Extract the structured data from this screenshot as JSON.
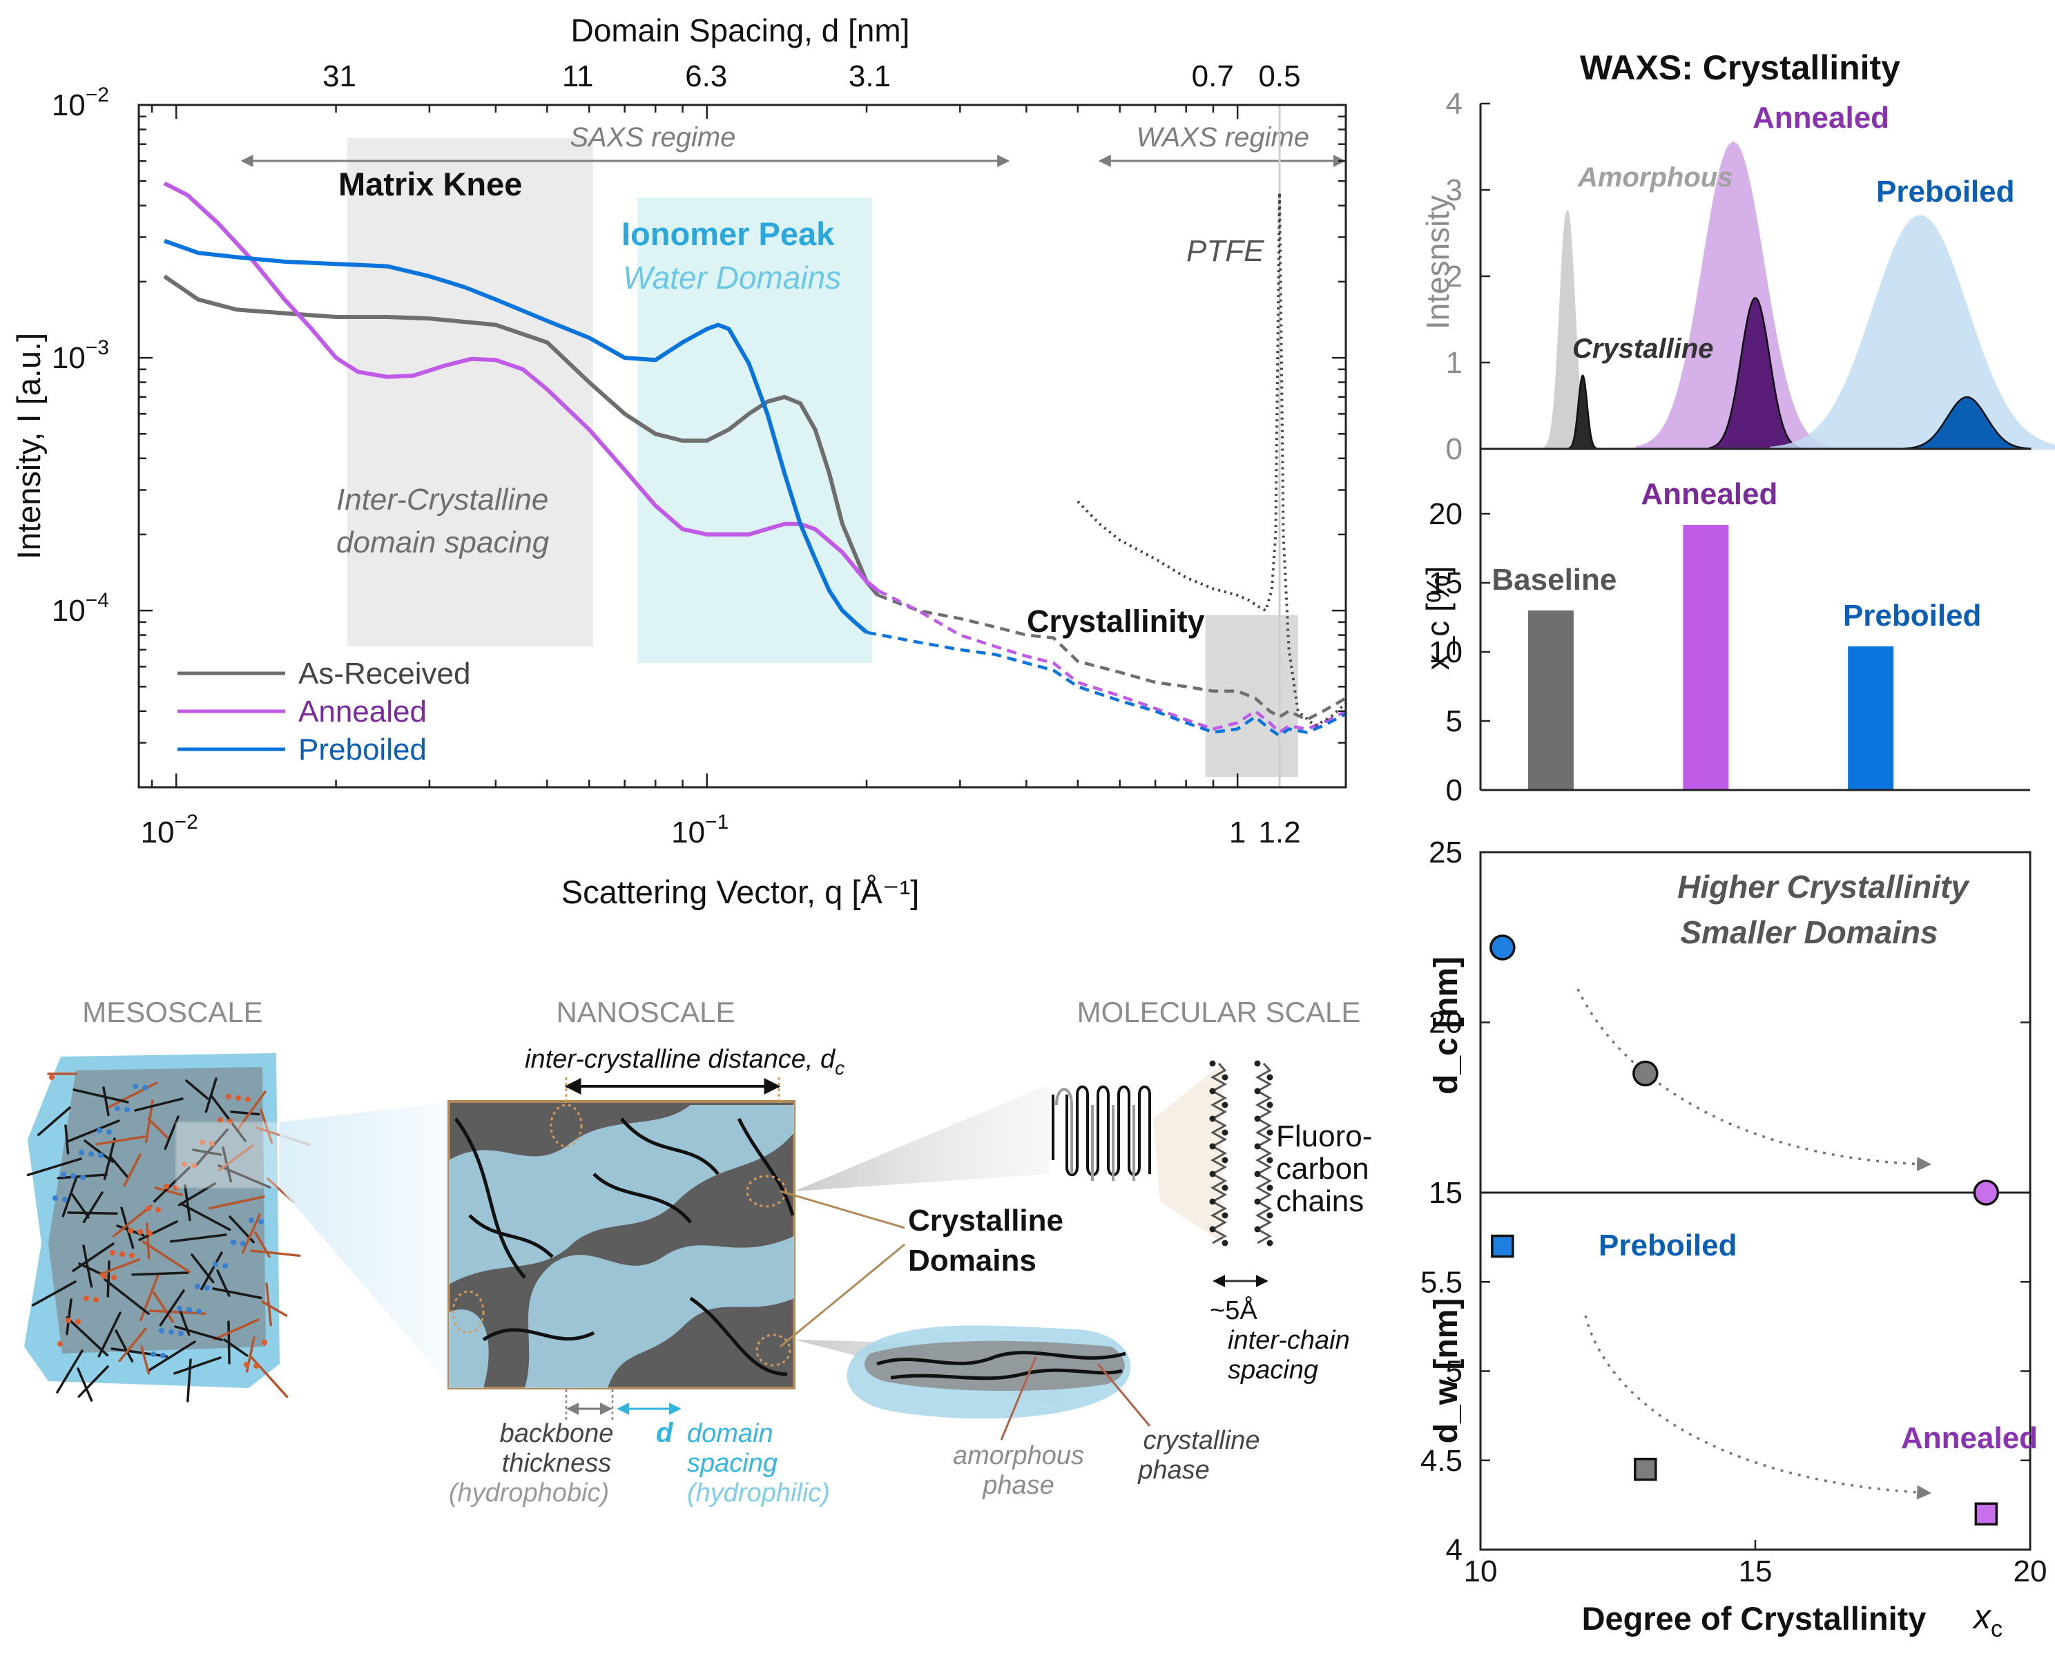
{
  "chart_data": [
    {
      "id": "saxs",
      "type": "line",
      "xscale": "log",
      "yscale": "log",
      "xlabel": "Scattering Vector, q [Å⁻¹]",
      "ylabel": "Intensity, I [a.u.]",
      "top_axis_label": "Domain Spacing, d [nm]",
      "xlim": [
        0.0085,
        1.6
      ],
      "ylim": [
        2e-05,
        0.01
      ],
      "x_ticks": [
        {
          "v": 0.01,
          "label": "10",
          "exp": "−2"
        },
        {
          "v": 0.1,
          "label": "10",
          "exp": "−1"
        },
        {
          "v": 1,
          "label": "1",
          "exp": ""
        },
        {
          "v": 1.2,
          "label": "1.2",
          "exp": ""
        }
      ],
      "y_ticks": [
        {
          "v": 0.01,
          "label": "10",
          "exp": "−2"
        },
        {
          "v": 0.001,
          "label": "10",
          "exp": "−3"
        },
        {
          "v": 0.0001,
          "label": "10",
          "exp": "−4"
        }
      ],
      "top_ticks": [
        {
          "q": 0.0203,
          "label": "31"
        },
        {
          "q": 0.0571,
          "label": "11"
        },
        {
          "q": 0.0997,
          "label": "6.3"
        },
        {
          "q": 0.2027,
          "label": "3.1"
        },
        {
          "q": 0.898,
          "label": "0.7"
        },
        {
          "q": 1.2,
          "label": "0.5"
        }
      ],
      "regimes": [
        {
          "label": "SAXS regime",
          "x0": 0.0133,
          "x1": 0.37
        },
        {
          "label": "WAXS regime",
          "x0": 0.55,
          "x1": 1.6
        }
      ],
      "shaded_regions": [
        {
          "name": "matrix-knee",
          "x0": 0.021,
          "x1": 0.061,
          "y0": 7.2e-05,
          "y1": 0.0074,
          "color": "#ebebeb"
        },
        {
          "name": "ionomer",
          "x0": 0.074,
          "x1": 0.205,
          "y0": 6.2e-05,
          "y1": 0.0043,
          "color": "#def4f4"
        },
        {
          "name": "crystallinity",
          "x0": 0.87,
          "x1": 1.3,
          "y0": 2.2e-05,
          "y1": 9.6e-05,
          "color": "#d9d9d9"
        }
      ],
      "annotations": {
        "matrix_knee": "Matrix Knee",
        "ionomer_peak": "Ionomer Peak",
        "water_domains": "Water Domains",
        "inter_crystalline_1": "Inter-Crystalline",
        "inter_crystalline_2": "domain spacing",
        "ptfe": "PTFE",
        "crystallinity": "Crystallinity"
      },
      "series": [
        {
          "name": "As-Received",
          "color": "#6e6e6e",
          "solid_x": [
            0.0095,
            0.011,
            0.013,
            0.016,
            0.02,
            0.025,
            0.03,
            0.04,
            0.05,
            0.06,
            0.07,
            0.08,
            0.09,
            0.1,
            0.11,
            0.12,
            0.13,
            0.14,
            0.15,
            0.16,
            0.17,
            0.18,
            0.2,
            0.21
          ],
          "solid_y": [
            0.0021,
            0.0017,
            0.00155,
            0.0015,
            0.00145,
            0.00145,
            0.00143,
            0.00135,
            0.00115,
            0.0008,
            0.0006,
            0.0005,
            0.00047,
            0.00047,
            0.00052,
            0.0006,
            0.00067,
            0.0007,
            0.00066,
            0.00052,
            0.00035,
            0.00022,
            0.00013,
            0.000115
          ],
          "dash_x": [
            0.21,
            0.25,
            0.3,
            0.35,
            0.4,
            0.45,
            0.5,
            0.6,
            0.7,
            0.8,
            0.9,
            1.0,
            1.08,
            1.15,
            1.2,
            1.25,
            1.35,
            1.45,
            1.6
          ],
          "dash_y": [
            0.000115,
            0.0001,
            9.3e-05,
            8.6e-05,
            8e-05,
            7.8e-05,
            6.3e-05,
            5.7e-05,
            5.2e-05,
            5e-05,
            4.8e-05,
            4.8e-05,
            4.5e-05,
            4e-05,
            3.8e-05,
            4e-05,
            3.7e-05,
            4e-05,
            4.5e-05
          ]
        },
        {
          "name": "Annealed",
          "color": "#c05be8",
          "solid_x": [
            0.0095,
            0.0105,
            0.012,
            0.014,
            0.016,
            0.018,
            0.02,
            0.022,
            0.025,
            0.028,
            0.032,
            0.036,
            0.04,
            0.045,
            0.05,
            0.06,
            0.07,
            0.08,
            0.09,
            0.1,
            0.12,
            0.14,
            0.15,
            0.16,
            0.18,
            0.2,
            0.21
          ],
          "solid_y": [
            0.0049,
            0.0044,
            0.0034,
            0.0024,
            0.0017,
            0.0013,
            0.001,
            0.00088,
            0.00084,
            0.00085,
            0.00093,
            0.00099,
            0.00098,
            0.0009,
            0.00075,
            0.00052,
            0.00036,
            0.00026,
            0.00021,
            0.0002,
            0.0002,
            0.00022,
            0.00022,
            0.00021,
            0.00017,
            0.00013,
            0.00012
          ],
          "dash_x": [
            0.21,
            0.25,
            0.3,
            0.35,
            0.4,
            0.45,
            0.5,
            0.6,
            0.7,
            0.8,
            0.9,
            1.0,
            1.08,
            1.15,
            1.2,
            1.25,
            1.35,
            1.45,
            1.6
          ],
          "dash_y": [
            0.00012,
            0.0001,
            8e-05,
            7.2e-05,
            6.6e-05,
            6.2e-05,
            5.2e-05,
            4.6e-05,
            4.1e-05,
            3.7e-05,
            3.4e-05,
            3.6e-05,
            4e-05,
            3.6e-05,
            3.3e-05,
            3.5e-05,
            3.4e-05,
            3.6e-05,
            4e-05
          ]
        },
        {
          "name": "Preboiled",
          "color": "#0a74dd",
          "solid_x": [
            0.0095,
            0.011,
            0.013,
            0.016,
            0.02,
            0.025,
            0.03,
            0.035,
            0.04,
            0.05,
            0.06,
            0.07,
            0.08,
            0.09,
            0.1,
            0.105,
            0.11,
            0.12,
            0.13,
            0.14,
            0.15,
            0.16,
            0.17,
            0.18,
            0.19,
            0.2
          ],
          "solid_y": [
            0.0029,
            0.0026,
            0.0025,
            0.0024,
            0.00235,
            0.0023,
            0.0021,
            0.0019,
            0.0017,
            0.0014,
            0.0012,
            0.001,
            0.00098,
            0.00115,
            0.0013,
            0.00135,
            0.0013,
            0.00095,
            0.0006,
            0.00035,
            0.00022,
            0.00016,
            0.00012,
            0.0001,
            9e-05,
            8.2e-05
          ],
          "dash_x": [
            0.2,
            0.25,
            0.3,
            0.35,
            0.4,
            0.45,
            0.5,
            0.6,
            0.7,
            0.8,
            0.9,
            1.0,
            1.08,
            1.15,
            1.2,
            1.25,
            1.35,
            1.45,
            1.6
          ],
          "dash_y": [
            8.2e-05,
            7.5e-05,
            7e-05,
            6.7e-05,
            6.2e-05,
            5.8e-05,
            5e-05,
            4.4e-05,
            4e-05,
            3.6e-05,
            3.3e-05,
            3.4e-05,
            3.8e-05,
            3.4e-05,
            3.2e-05,
            3.4e-05,
            3.3e-05,
            3.5e-05,
            3.9e-05
          ]
        },
        {
          "name": "PTFE",
          "color": "#444444",
          "dotted_x": [
            0.5,
            0.55,
            0.6,
            0.7,
            0.8,
            0.9,
            1.0,
            1.05,
            1.1,
            1.13,
            1.16,
            1.18,
            1.19,
            1.2,
            1.21,
            1.22,
            1.25,
            1.3,
            1.4,
            1.5,
            1.6
          ],
          "dotted_y": [
            0.00027,
            0.00022,
            0.00019,
            0.00016,
            0.000135,
            0.000122,
            0.000115,
            0.00011,
            0.000103,
            0.0001,
            0.00012,
            0.0002,
            0.001,
            0.0045,
            0.001,
            0.0002,
            7e-05,
            4e-05,
            3.5e-05,
            3.8e-05,
            4.3e-05
          ]
        }
      ],
      "legend": [
        "As-Received",
        "Annealed",
        "Preboiled"
      ]
    },
    {
      "id": "waxs",
      "type": "area",
      "title": "WAXS: Crystallinity",
      "ylabel": "Intesnsity",
      "ylim": [
        0,
        4
      ],
      "y_ticks": [
        0,
        1,
        2,
        3,
        4
      ],
      "labels": {
        "amorphous": "Amorphous",
        "crystalline": "Crystalline",
        "annealed": "Annealed",
        "preboiled": "Preboiled"
      },
      "peaks": [
        {
          "name": "Amorphous",
          "role": "amorphous",
          "center": 0.158,
          "sigma": 0.013,
          "height": 2.75,
          "color": "#c8c8c8"
        },
        {
          "name": "Crystalline",
          "role": "crystalline",
          "center": 0.186,
          "sigma": 0.008,
          "height": 0.85,
          "color": "#2a2a2a"
        },
        {
          "name": "Annealed",
          "role": "amorphous",
          "center": 0.46,
          "sigma": 0.055,
          "height": 3.55,
          "color": "#cfa3e5"
        },
        {
          "name": "Annealed",
          "role": "crystalline",
          "center": 0.5,
          "sigma": 0.026,
          "height": 1.75,
          "color": "#5a1e79"
        },
        {
          "name": "Preboiled",
          "role": "amorphous",
          "center": 0.8,
          "sigma": 0.085,
          "height": 2.7,
          "color": "#c3dcf3"
        },
        {
          "name": "Preboiled",
          "role": "crystalline",
          "center": 0.885,
          "sigma": 0.036,
          "height": 0.6,
          "color": "#0a5fb5"
        }
      ]
    },
    {
      "id": "xc-bars",
      "type": "bar",
      "ylabel": "x_c [%]",
      "ylim": [
        0,
        20
      ],
      "y_ticks": [
        0,
        5,
        10,
        15,
        20
      ],
      "categories": [
        "Baseline",
        "Annealed",
        "Preboiled"
      ],
      "values": [
        13,
        19.2,
        10.4
      ],
      "colors": [
        "#6e6e6e",
        "#c05be8",
        "#0a74dd"
      ],
      "label_colors": [
        "#555555",
        "#7b2a9a",
        "#0a5fb5"
      ]
    },
    {
      "id": "dc-scatter",
      "type": "scatter",
      "ylabel": "d_c [nm]",
      "ylim": [
        15,
        25
      ],
      "y_ticks": [
        15,
        20,
        25
      ],
      "xlim": [
        10,
        20
      ],
      "annotation_1": "Higher Crystallinity",
      "annotation_2": "Smaller Domains",
      "points": [
        {
          "name": "Preboiled",
          "x": 10.4,
          "y": 22.2,
          "color": "#1f7fe0"
        },
        {
          "name": "As-Received",
          "x": 13.0,
          "y": 18.5,
          "color": "#7d7d7d"
        },
        {
          "name": "Annealed",
          "x": 19.2,
          "y": 15.0,
          "color": "#c870ec"
        }
      ]
    },
    {
      "id": "dw-scatter",
      "type": "scatter",
      "xlabel": "Degree of Crystallinity",
      "xlabel_symbol": "x",
      "ylabel": "d_w [nm]",
      "xlim": [
        10,
        20
      ],
      "ylim": [
        4,
        6
      ],
      "x_ticks": [
        10,
        15,
        20
      ],
      "y_ticks": [
        4,
        4.5,
        5,
        5.5
      ],
      "labels": {
        "preboiled": "Preboiled",
        "annealed": "Annealed"
      },
      "points": [
        {
          "name": "Preboiled",
          "x": 10.4,
          "y": 5.7,
          "color": "#1f7fe0"
        },
        {
          "name": "As-Received",
          "x": 13.0,
          "y": 4.45,
          "color": "#7d7d7d"
        },
        {
          "name": "Annealed",
          "x": 19.2,
          "y": 4.2,
          "color": "#c870ec"
        }
      ]
    }
  ],
  "schematic": {
    "mesoscale": "MESOSCALE",
    "nanoscale": "NANOSCALE",
    "molecular_scale": "MOLECULAR SCALE",
    "inter_crystalline_distance": "inter-crystalline distance, d",
    "dc_sub": "c",
    "crystalline_domains_1": "Crystalline",
    "crystalline_domains_2": "Domains",
    "fluoro_1": "Fluoro-",
    "fluoro_2": "carbon",
    "fluoro_3": "chains",
    "chain_spacing_1": "~5Å",
    "chain_spacing_2": "inter-chain",
    "chain_spacing_3": "spacing",
    "backbone_1": "backbone",
    "backbone_2": "thickness",
    "backbone_3": "(hydrophobic)",
    "domain_d": "d",
    "domain_1": "domain",
    "domain_2": "spacing",
    "domain_3": "(hydrophilic)",
    "amorphous_1": "amorphous",
    "amorphous_2": "phase",
    "crystalline_1": "crystalline",
    "crystalline_2": "phase"
  }
}
